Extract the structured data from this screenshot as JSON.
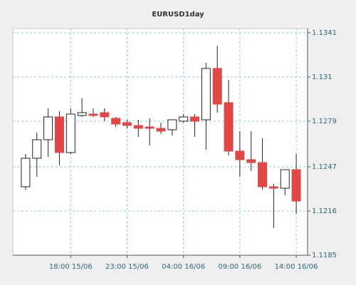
{
  "chart_data": {
    "type": "candlestick",
    "title": "EURUSD1day",
    "categories": [
      null,
      null,
      null,
      null,
      "18:00 15/06",
      null,
      null,
      null,
      null,
      "23:00 15/06",
      null,
      null,
      null,
      null,
      "04:00 16/06",
      null,
      null,
      null,
      null,
      "09:00 16/06",
      null,
      null,
      null,
      null,
      "14:00 16/06"
    ],
    "open": [
      1.1233,
      1.1253,
      1.1266,
      1.1282,
      1.1257,
      1.1283,
      1.1284,
      1.1285,
      1.1281,
      1.1278,
      1.1276,
      1.1275,
      1.1274,
      1.1273,
      1.1279,
      1.1282,
      1.128,
      1.1316,
      1.1292,
      1.1258,
      1.1252,
      1.125,
      1.1233,
      1.1232,
      1.1245
    ],
    "high": [
      1.1256,
      1.1271,
      1.1288,
      1.1286,
      1.1288,
      1.1295,
      1.1288,
      1.1288,
      1.1282,
      1.128,
      1.128,
      1.1281,
      1.1278,
      1.128,
      1.1284,
      1.1284,
      1.132,
      1.1332,
      1.1308,
      1.1272,
      1.1272,
      1.1267,
      1.1235,
      1.1245,
      1.1256
    ],
    "low": [
      1.1231,
      1.124,
      1.1254,
      1.1248,
      1.1256,
      1.1282,
      1.1282,
      1.1279,
      1.1275,
      1.1274,
      1.1268,
      1.1262,
      1.127,
      1.1269,
      1.1278,
      1.1268,
      1.1259,
      1.1285,
      1.1255,
      1.124,
      1.1244,
      1.1231,
      1.1204,
      1.1227,
      1.1214
    ],
    "close": [
      1.1253,
      1.1266,
      1.1282,
      1.1257,
      1.1284,
      1.1285,
      1.1283,
      1.1282,
      1.1277,
      1.1276,
      1.1274,
      1.1274,
      1.1272,
      1.128,
      1.1282,
      1.1279,
      1.1316,
      1.1291,
      1.1258,
      1.1252,
      1.125,
      1.1233,
      1.1232,
      1.1245,
      1.1223
    ],
    "up_color": "#ffffff",
    "down_color": "#e04848",
    "ylim": [
      1.1185,
      1.1344
    ],
    "yticks": [
      1.1185,
      1.1216,
      1.1247,
      1.1279,
      1.131,
      1.1341
    ],
    "grid": true
  }
}
